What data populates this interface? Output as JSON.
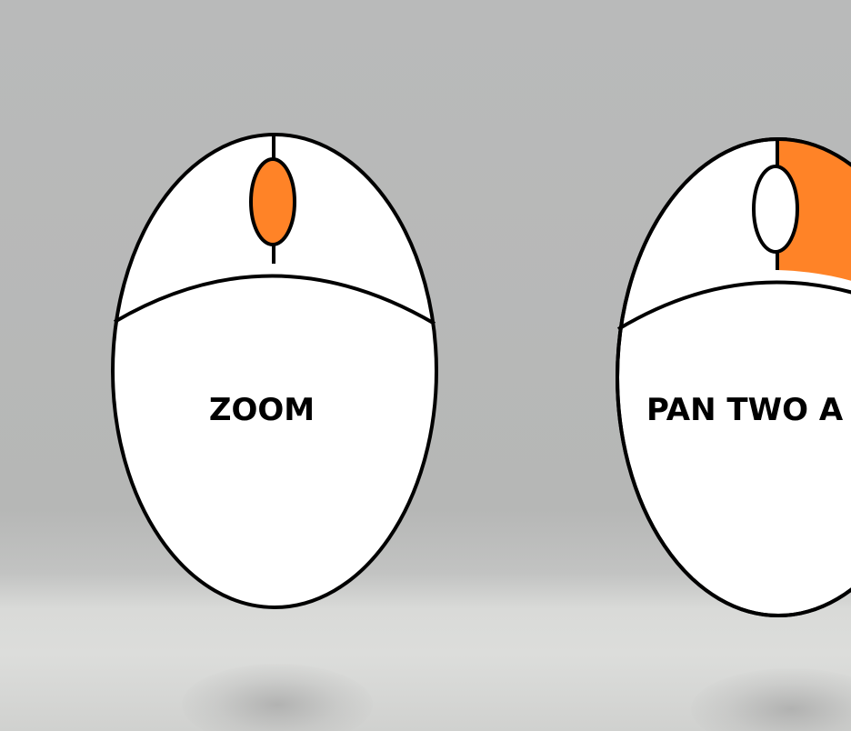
{
  "colors": {
    "background": "#b7b8b7",
    "mouse_body": "#ffffff",
    "outline": "#000000",
    "highlight": "#ff8327"
  },
  "mice": [
    {
      "label": "ZOOM",
      "highlighted_part": "scroll-wheel"
    },
    {
      "label": "PAN TWO A",
      "highlighted_part": "right-button"
    }
  ]
}
